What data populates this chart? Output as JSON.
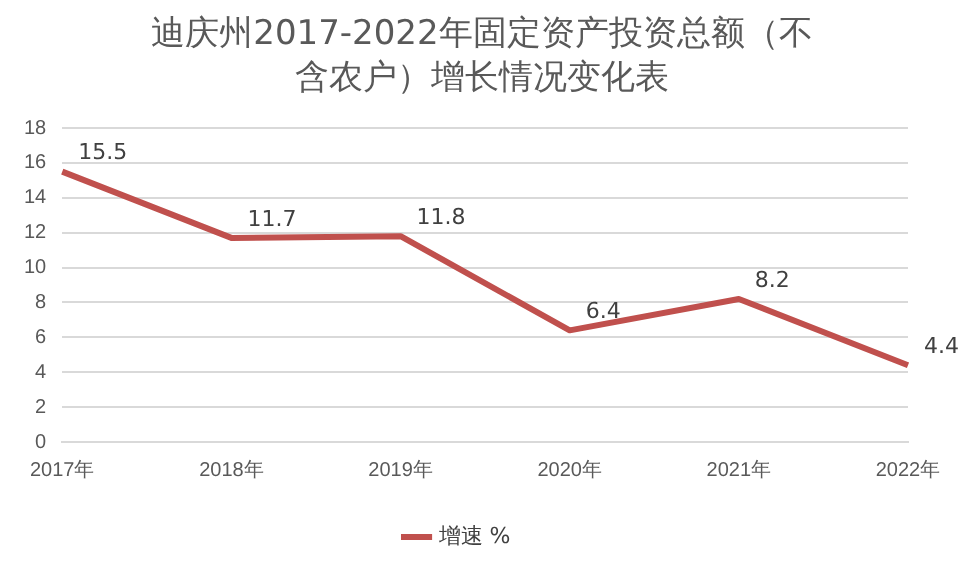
{
  "chart_data": {
    "type": "line",
    "title": "迪庆州2017-2022年固定资产投资总额（不含农户）增长情况变化表",
    "categories": [
      "2017年",
      "2018年",
      "2019年",
      "2020年",
      "2021年",
      "2022年"
    ],
    "series": [
      {
        "name": "增速 %",
        "color": "#c0504d",
        "values": [
          15.5,
          11.7,
          11.8,
          6.4,
          8.2,
          4.4
        ]
      }
    ],
    "ylim": [
      0,
      18
    ],
    "yticks": [
      0,
      2,
      4,
      6,
      8,
      10,
      12,
      14,
      16,
      18
    ],
    "grid": "y",
    "legend": "bottom",
    "data_labels": true,
    "marker": "none",
    "line_style": "solid"
  }
}
